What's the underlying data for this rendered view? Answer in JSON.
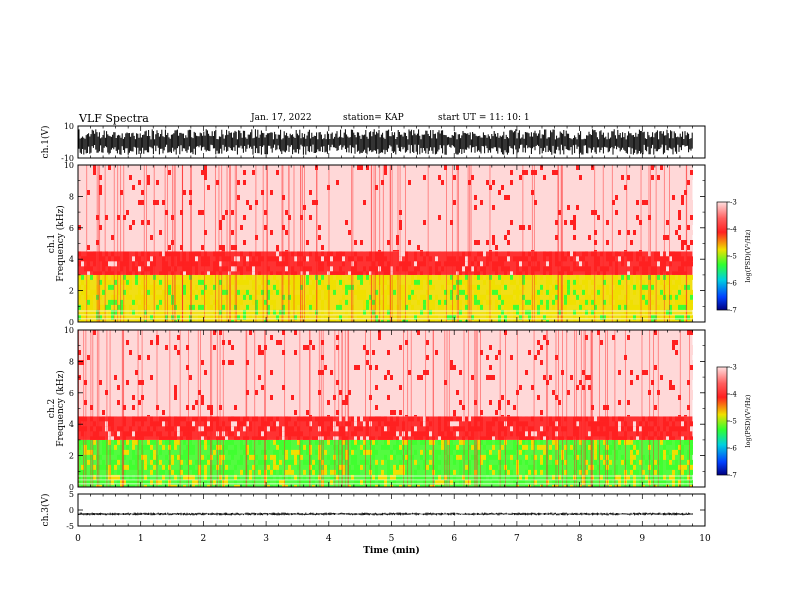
{
  "header": {
    "title": "VLF Spectra",
    "date": "Jan. 17, 2022",
    "station": "station= KAP",
    "start": "start  UT =   11: 10: 1"
  },
  "chart_data": [
    {
      "type": "line",
      "name": "ch1-waveform",
      "ylabel": "ch.1(V)",
      "ylim": [
        -10,
        10
      ],
      "yticks": [
        "10",
        "-10"
      ],
      "xlim": [
        0,
        10
      ],
      "data_end_min": 9.8,
      "note_amplitude": [
        -8,
        8
      ]
    },
    {
      "type": "heatmap",
      "name": "ch1-spectrogram",
      "ylabel": "ch.1 Frequency  (kHz)",
      "ylim": [
        0,
        10
      ],
      "yticks": [
        "0",
        "2",
        "4",
        "6",
        "8",
        "10"
      ],
      "xlim": [
        0,
        10
      ],
      "data_end_min": 9.8,
      "bands_khz": [
        {
          "from": 0,
          "to": 3,
          "level": -4.6
        },
        {
          "from": 3,
          "to": 4.5,
          "level": -3.8
        },
        {
          "from": 4.5,
          "to": 10,
          "level": -3.2
        }
      ],
      "colorbar": {
        "label": "log(PSD)(V²/Hz)",
        "range": [
          -7,
          -3
        ],
        "ticks": [
          "-3",
          "-4",
          "-5",
          "-6",
          "-7"
        ]
      }
    },
    {
      "type": "heatmap",
      "name": "ch2-spectrogram",
      "ylabel": "ch.2 Frequency  (kHz)",
      "ylim": [
        0,
        10
      ],
      "yticks": [
        "0",
        "2",
        "4",
        "6",
        "8",
        "10"
      ],
      "xlim": [
        0,
        10
      ],
      "data_end_min": 9.8,
      "bands_khz": [
        {
          "from": 0,
          "to": 3,
          "level": -4.9
        },
        {
          "from": 3,
          "to": 4.5,
          "level": -3.8
        },
        {
          "from": 4.5,
          "to": 10,
          "level": -3.2
        }
      ],
      "colorbar": {
        "label": "log(PSD)(V²/Hz)",
        "range": [
          -7,
          -3
        ],
        "ticks": [
          "-3",
          "-4",
          "-5",
          "-6",
          "-7"
        ]
      }
    },
    {
      "type": "line",
      "name": "ch3-waveform",
      "ylabel": "ch.3(V)",
      "ylim": [
        -5,
        5
      ],
      "yticks": [
        "5",
        "0",
        "-5"
      ],
      "xlim": [
        0,
        10
      ],
      "data_end_min": 9.8,
      "level_v": [
        -1.7,
        -0.8
      ],
      "xlabel": "Time  (min)",
      "xticks": [
        "0",
        "1",
        "2",
        "3",
        "4",
        "5",
        "6",
        "7",
        "8",
        "9",
        "10"
      ]
    }
  ],
  "colors": {
    "low": "#000090",
    "blue": "#0050ff",
    "cyan": "#00d0e0",
    "green": "#40ff30",
    "yellow": "#f0e000",
    "red": "#ff2020",
    "high": "#ffd8d8",
    "trace": "#000000"
  }
}
